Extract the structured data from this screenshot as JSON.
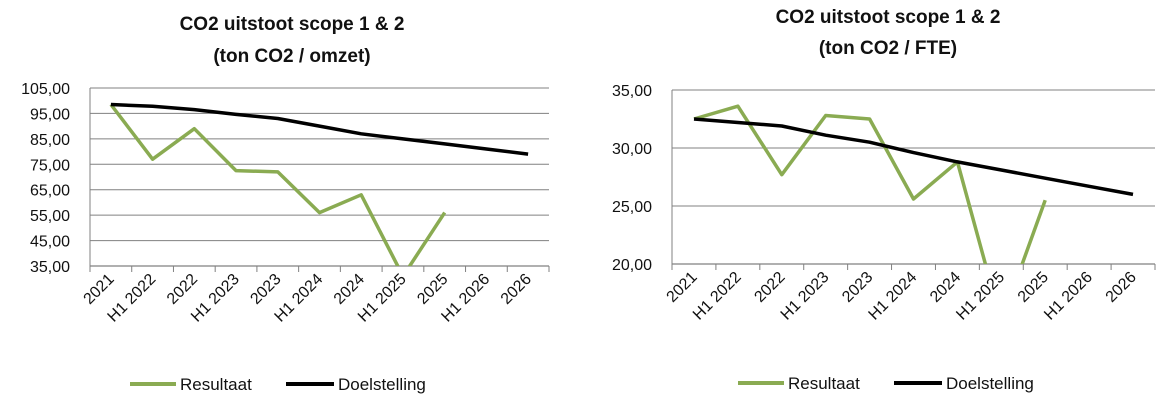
{
  "chart_data": [
    {
      "type": "line",
      "title_lines": [
        "CO2 uitstoot scope 1 & 2",
        "(ton CO2 / omzet)"
      ],
      "categories": [
        "2021",
        "H1 2022",
        "2022",
        "H1 2023",
        "2023",
        "H1 2024",
        "2024",
        "H1 2025",
        "2025",
        "H1 2026",
        "2026"
      ],
      "y_tick_labels": [
        "105,00",
        "95,00",
        "85,00",
        "75,00",
        "65,00",
        "55,00",
        "45,00",
        "35,00"
      ],
      "ylim": [
        35,
        105
      ],
      "y_ticks": [
        35,
        45,
        55,
        65,
        75,
        85,
        95,
        105
      ],
      "grid": true,
      "legend_position": "bottom",
      "series": [
        {
          "name": "Resultaat",
          "color": "#8aab52",
          "values": [
            98.5,
            77.0,
            89.0,
            72.5,
            72.0,
            56.0,
            63.0,
            31.0,
            56.0,
            null,
            null
          ]
        },
        {
          "name": "Doelstelling",
          "color": "#000000",
          "values": [
            98.5,
            97.8,
            96.5,
            94.6,
            93.0,
            90.0,
            87.0,
            85.0,
            83.0,
            81.0,
            79.0
          ]
        }
      ]
    },
    {
      "type": "line",
      "title_lines": [
        "CO2 uitstoot scope 1 & 2",
        "(ton CO2 / FTE)"
      ],
      "categories": [
        "2021",
        "H1 2022",
        "2022",
        "H1 2023",
        "2023",
        "H1 2024",
        "2024",
        "H1 2025",
        "2025",
        "H1 2026",
        "2026"
      ],
      "y_tick_labels": [
        "35,00",
        "30,00",
        "25,00",
        "20,00"
      ],
      "ylim": [
        20,
        35
      ],
      "y_ticks": [
        20,
        25,
        30,
        35
      ],
      "grid": true,
      "legend_position": "bottom",
      "series": [
        {
          "name": "Resultaat",
          "color": "#8aab52",
          "values": [
            32.5,
            33.6,
            27.7,
            32.8,
            32.5,
            25.6,
            28.8,
            15.0,
            25.5,
            null,
            null
          ]
        },
        {
          "name": "Doelstelling",
          "color": "#000000",
          "values": [
            32.5,
            32.2,
            31.9,
            31.1,
            30.5,
            29.6,
            28.8,
            28.1,
            27.4,
            26.7,
            26.0
          ]
        }
      ]
    }
  ]
}
